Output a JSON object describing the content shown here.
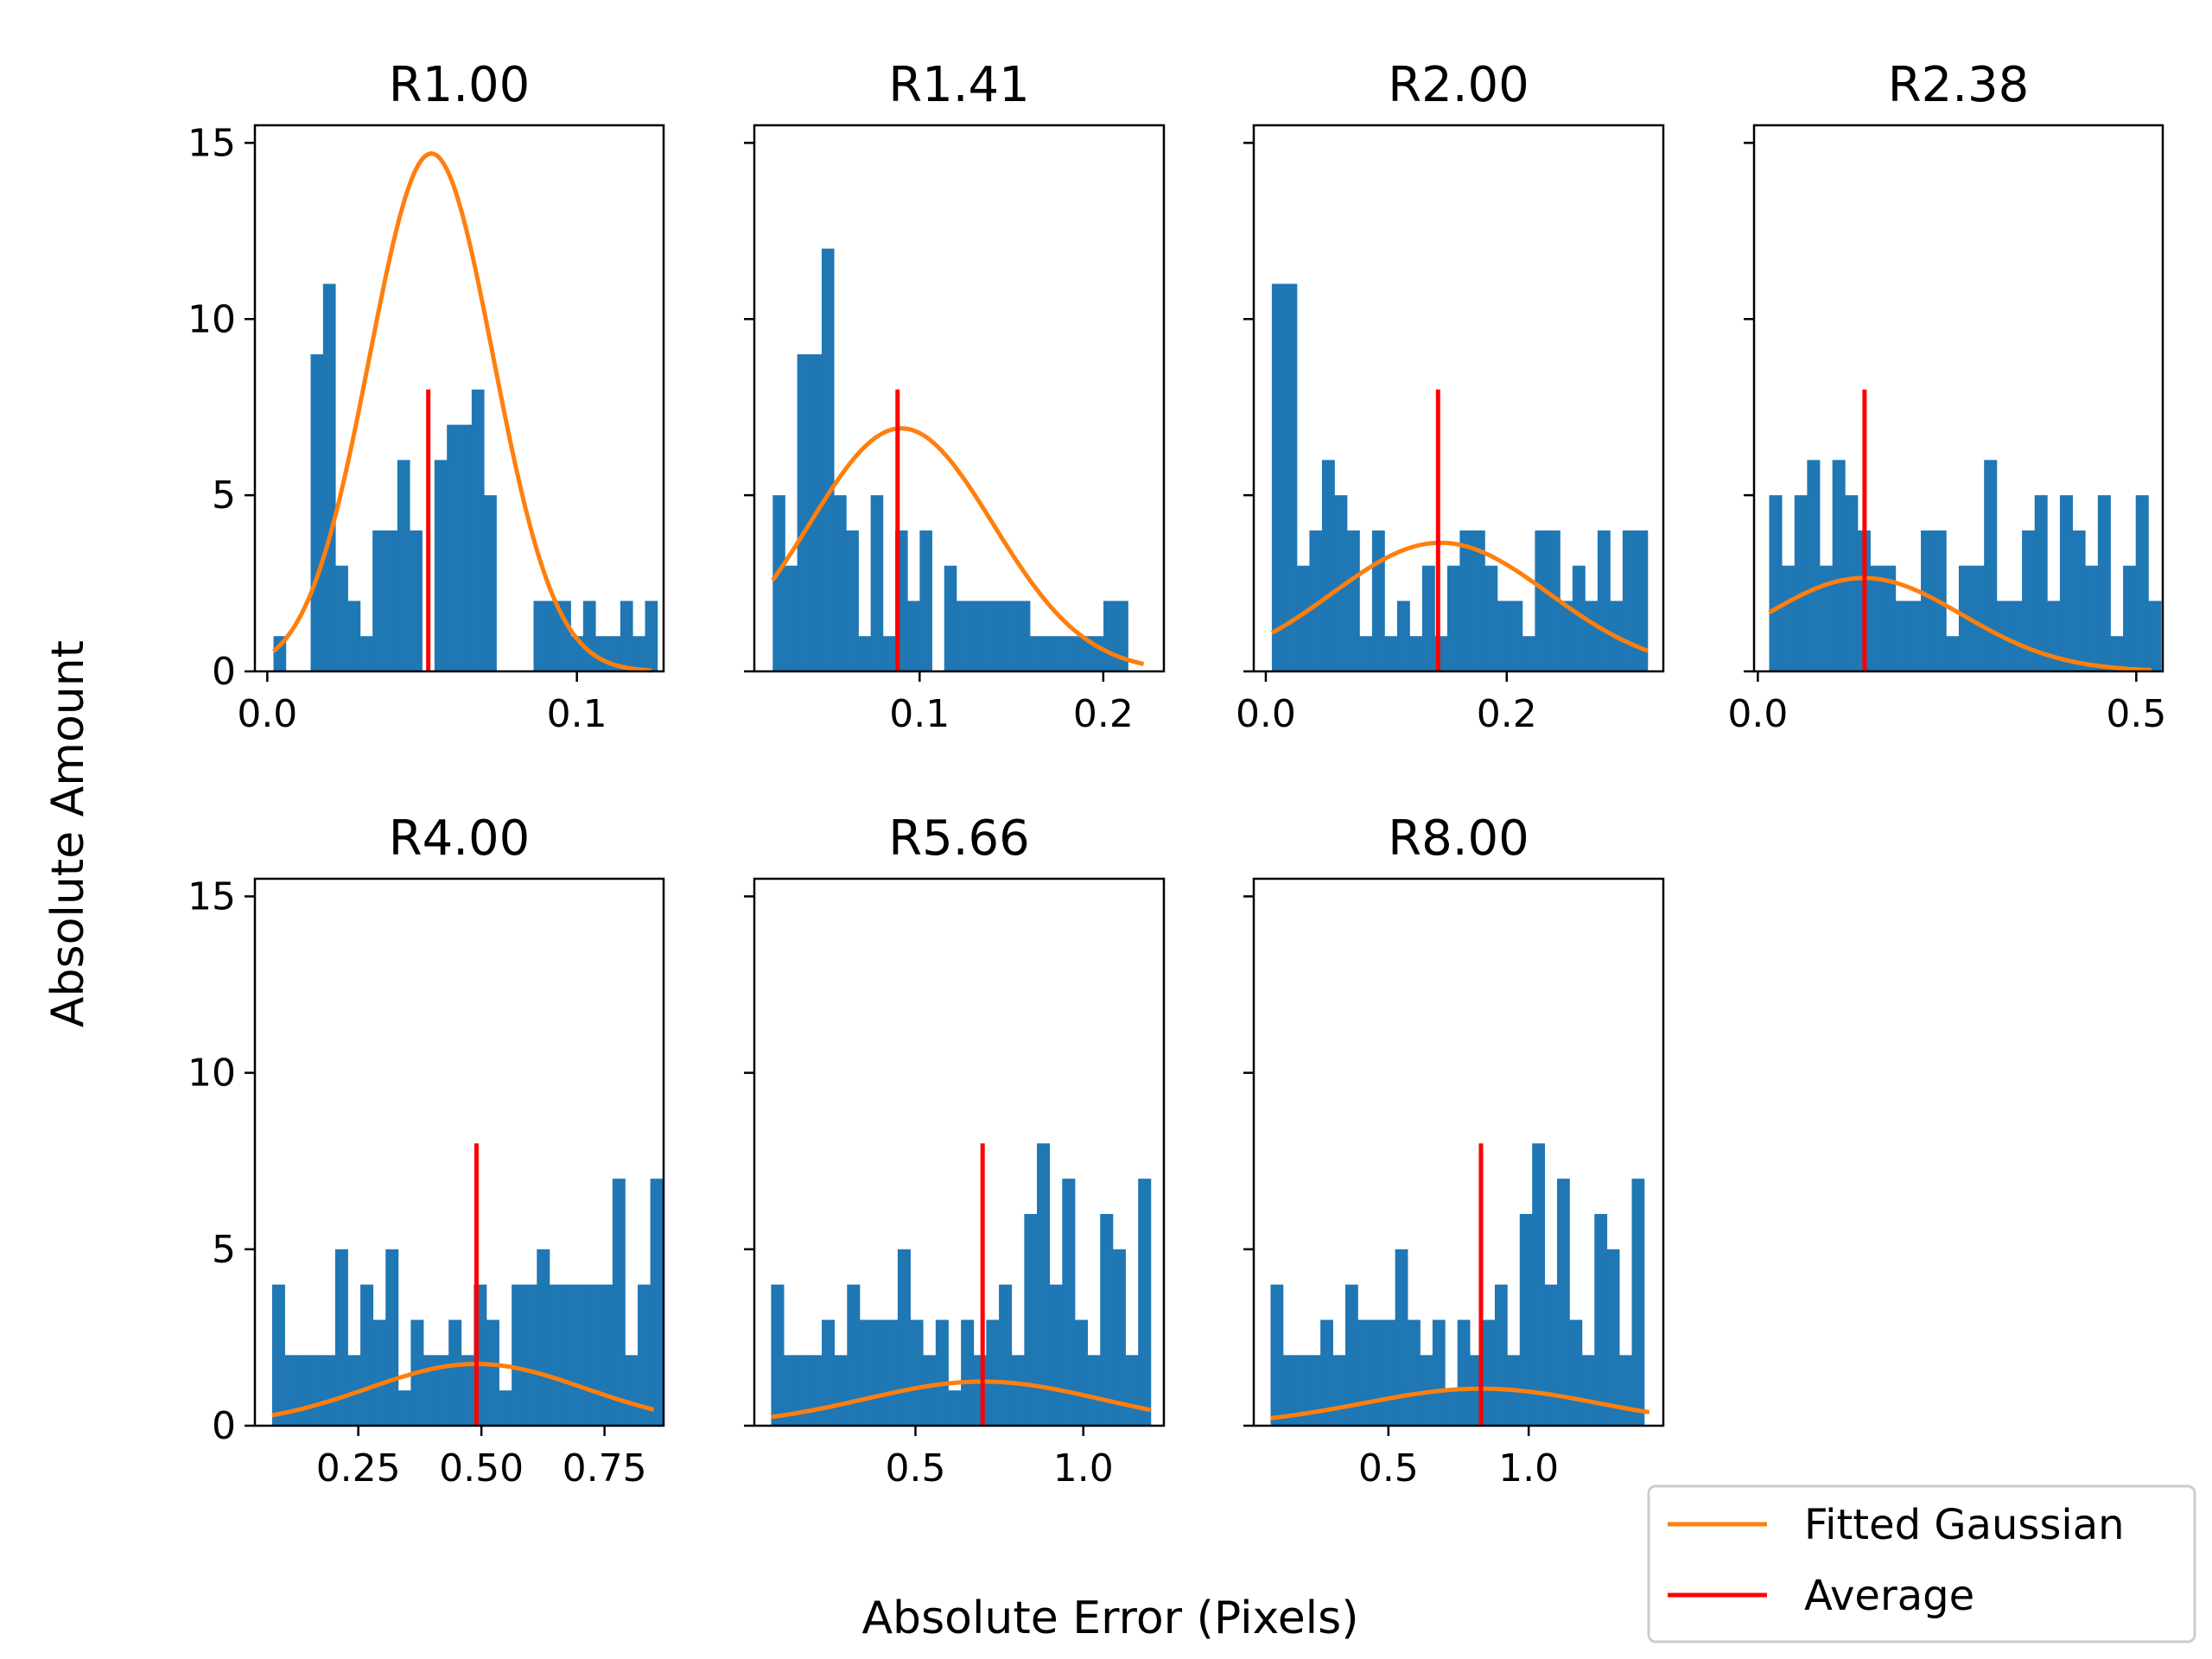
{
  "figure": {
    "xlabel": "Absolute Error (Pixels)",
    "ylabel": "Absolute Amount",
    "legend": {
      "placement": "bottom-right",
      "entries": [
        {
          "label": "Fitted Gaussian",
          "color": "#ff7f0e"
        },
        {
          "label": "Average",
          "color": "#ff0000"
        }
      ]
    },
    "colors": {
      "histogram": "#1f77b4",
      "fitted_gaussian": "#ff7f0e",
      "average": "#ff0000"
    }
  },
  "chart_data": [
    {
      "type": "bar",
      "title": "R1.00",
      "xlim": [
        -0.004,
        0.128
      ],
      "ylim": [
        0,
        15.5
      ],
      "xticks": [
        0.0,
        0.1
      ],
      "xticklabels": [
        "0.0",
        "0.1"
      ],
      "yticks": [
        0,
        5,
        10,
        15
      ],
      "yticklabels": [
        "0",
        "5",
        "10",
        "15"
      ],
      "bins": {
        "start": 0.002,
        "width": 0.004,
        "counts": [
          1,
          0,
          0,
          9,
          11,
          3,
          2,
          1,
          4,
          4,
          6,
          4,
          0,
          6,
          7,
          7,
          8,
          5,
          0,
          0,
          0,
          2,
          2,
          2,
          1,
          2,
          1,
          1,
          2,
          1,
          2
        ]
      },
      "average": {
        "x": 0.052,
        "height": 8
      },
      "gaussian": {
        "peak": 14.7,
        "mean": 0.053,
        "sigma": 0.02,
        "xrange": [
          0.002,
          0.124
        ]
      }
    },
    {
      "type": "bar",
      "title": "R1.41",
      "xlim": [
        0.01,
        0.233
      ],
      "ylim": [
        0,
        15.5
      ],
      "xticks": [
        0.1,
        0.2
      ],
      "xticklabels": [
        "0.1",
        "0.2"
      ],
      "yticks": [
        0,
        5,
        10,
        15
      ],
      "yticklabels": [
        "0",
        "5",
        "10",
        "15"
      ],
      "bins": {
        "start": 0.02,
        "width": 0.00667,
        "counts": [
          5,
          3,
          9,
          9,
          12,
          5,
          4,
          1,
          5,
          1,
          4,
          2,
          4,
          0,
          3,
          2,
          2,
          2,
          2,
          2,
          2,
          1,
          1,
          1,
          1,
          1,
          1,
          2,
          2,
          0
        ]
      },
      "average": {
        "x": 0.088,
        "height": 8
      },
      "gaussian": {
        "peak": 6.9,
        "mean": 0.09,
        "sigma": 0.05,
        "xrange": [
          0.02,
          0.222
        ]
      }
    },
    {
      "type": "bar",
      "title": "R2.00",
      "xlim": [
        -0.01,
        0.33
      ],
      "ylim": [
        0,
        15.5
      ],
      "xticks": [
        0.0,
        0.2
      ],
      "xticklabels": [
        "0.0",
        "0.2"
      ],
      "yticks": [
        0,
        5,
        10,
        15
      ],
      "yticklabels": [
        "0",
        "5",
        "10",
        "15"
      ],
      "bins": {
        "start": 0.005,
        "width": 0.0104,
        "counts": [
          11,
          11,
          3,
          4,
          6,
          5,
          4,
          1,
          4,
          1,
          2,
          1,
          3,
          1,
          3,
          4,
          4,
          3,
          2,
          2,
          1,
          4,
          4,
          2,
          3,
          2,
          4,
          2,
          4,
          4
        ]
      },
      "average": {
        "x": 0.143,
        "height": 8
      },
      "gaussian": {
        "peak": 3.65,
        "mean": 0.145,
        "sigma": 0.09,
        "xrange": [
          0.005,
          0.317
        ]
      }
    },
    {
      "type": "bar",
      "title": "R2.38",
      "xlim": [
        -0.005,
        0.535
      ],
      "ylim": [
        0,
        15.5
      ],
      "xticks": [
        0.0,
        0.5
      ],
      "xticklabels": [
        "0.0",
        "0.5"
      ],
      "yticks": [
        0,
        5,
        10,
        15
      ],
      "yticklabels": [
        "0",
        "5",
        "10",
        "15"
      ],
      "bins": {
        "start": 0.015,
        "width": 0.0167,
        "counts": [
          5,
          3,
          5,
          6,
          3,
          6,
          5,
          4,
          3,
          3,
          2,
          2,
          4,
          4,
          1,
          3,
          3,
          6,
          2,
          2,
          4,
          5,
          2,
          5,
          4,
          3,
          5,
          1,
          3,
          5,
          2
        ]
      },
      "average": {
        "x": 0.141,
        "height": 8
      },
      "gaussian": {
        "peak": 2.65,
        "mean": 0.14,
        "sigma": 0.13,
        "xrange": [
          0.015,
          0.52
        ]
      }
    },
    {
      "type": "bar",
      "title": "R4.00",
      "xlim": [
        0.04,
        0.87
      ],
      "ylim": [
        0,
        15.5
      ],
      "xticks": [
        0.25,
        0.5,
        0.75
      ],
      "xticklabels": [
        "0.25",
        "0.50",
        "0.75"
      ],
      "yticks": [
        0,
        5,
        10,
        15
      ],
      "yticklabels": [
        "0",
        "5",
        "10",
        "15"
      ],
      "bins": {
        "start": 0.075,
        "width": 0.0256,
        "counts": [
          4,
          2,
          2,
          2,
          2,
          5,
          2,
          4,
          3,
          5,
          1,
          3,
          2,
          2,
          3,
          2,
          4,
          3,
          1,
          4,
          4,
          5,
          4,
          4,
          4,
          4,
          4,
          7,
          2,
          4,
          7
        ]
      },
      "average": {
        "x": 0.49,
        "height": 8
      },
      "gaussian": {
        "peak": 1.75,
        "mean": 0.49,
        "sigma": 0.22,
        "xrange": [
          0.075,
          0.85
        ]
      }
    },
    {
      "type": "bar",
      "title": "R5.66",
      "xlim": [
        0.02,
        1.24
      ],
      "ylim": [
        0,
        15.5
      ],
      "xticks": [
        0.5,
        1.0
      ],
      "xticklabels": [
        "0.5",
        "1.0"
      ],
      "yticks": [
        0,
        5,
        10,
        15
      ],
      "yticklabels": [
        "0",
        "5",
        "10",
        "15"
      ],
      "bins": {
        "start": 0.07,
        "width": 0.0377,
        "counts": [
          4,
          2,
          2,
          2,
          3,
          2,
          4,
          3,
          3,
          3,
          5,
          3,
          2,
          3,
          1,
          3,
          2,
          3,
          4,
          2,
          6,
          8,
          4,
          7,
          3,
          2,
          6,
          5,
          2,
          7
        ]
      },
      "average": {
        "x": 0.7,
        "height": 8
      },
      "gaussian": {
        "peak": 1.25,
        "mean": 0.7,
        "sigma": 0.35,
        "xrange": [
          0.07,
          1.2
        ]
      }
    },
    {
      "type": "bar",
      "title": "R8.00",
      "xlim": [
        0.02,
        1.48
      ],
      "ylim": [
        0,
        15.5
      ],
      "xticks": [
        0.5,
        1.0
      ],
      "xticklabels": [
        "0.5",
        "1.0"
      ],
      "yticks": [
        0,
        5,
        10,
        15
      ],
      "yticklabels": [
        "0",
        "5",
        "10",
        "15"
      ],
      "bins": {
        "start": 0.08,
        "width": 0.0444,
        "counts": [
          4,
          2,
          2,
          2,
          3,
          2,
          4,
          3,
          3,
          3,
          5,
          3,
          2,
          3,
          1,
          3,
          2,
          3,
          4,
          2,
          6,
          8,
          4,
          7,
          3,
          2,
          6,
          5,
          2,
          7
        ]
      },
      "average": {
        "x": 0.83,
        "height": 8
      },
      "gaussian": {
        "peak": 1.05,
        "mean": 0.83,
        "sigma": 0.42,
        "xrange": [
          0.08,
          1.43
        ]
      }
    }
  ]
}
